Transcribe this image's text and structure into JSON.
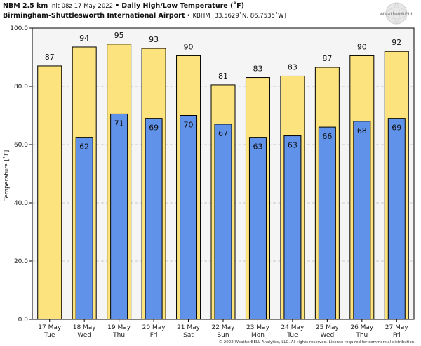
{
  "header": {
    "model": "NBM 2.5 km",
    "init": "Init 08z 17 May 2022",
    "bullet": "•",
    "title": "Daily High/Low Temperature (˚F)",
    "station": "Birmingham-Shuttlesworth International Airport",
    "station_code": "KBHM [33.5629˚N, 86.7535˚W]"
  },
  "logo": {
    "text": "WeatherBELL"
  },
  "copyright": "© 2022 WeatherBELL Analytics, LLC. All rights reserved. License required for commercial distribution.",
  "colors": {
    "high": "#fde37d",
    "low": "#6092e9",
    "outline": "#000000",
    "plot_bg": "#f5f5f5",
    "grid": "#cccccc"
  },
  "chart_data": {
    "type": "bar",
    "ylabel": "Temperature [˚F]",
    "ylim": [
      0,
      100
    ],
    "yticks": [
      "0.0",
      "20.0",
      "40.0",
      "60.0",
      "80.0",
      "100.0"
    ],
    "grid": true,
    "categories": [
      [
        "17 May",
        "Tue"
      ],
      [
        "18 May",
        "Wed"
      ],
      [
        "19 May",
        "Thu"
      ],
      [
        "20 May",
        "Fri"
      ],
      [
        "21 May",
        "Sat"
      ],
      [
        "22 May",
        "Sun"
      ],
      [
        "23 May",
        "Mon"
      ],
      [
        "24 May",
        "Tue"
      ],
      [
        "25 May",
        "Wed"
      ],
      [
        "26 May",
        "Thu"
      ],
      [
        "27 May",
        "Fri"
      ]
    ],
    "series": [
      {
        "values": [
          87,
          93.5,
          94.5,
          93,
          90.5,
          80.5,
          83,
          83.5,
          86.5,
          90.5,
          92
        ]
      },
      {
        "values": [
          null,
          62.5,
          70.5,
          69,
          70,
          67,
          62.5,
          63,
          66,
          68,
          69
        ]
      }
    ],
    "high_labels": [
      "87",
      "94",
      "95",
      "93",
      "90",
      "81",
      "83",
      "83",
      "87",
      "90",
      "92"
    ],
    "low_labels": [
      "",
      "62",
      "71",
      "69",
      "70",
      "67",
      "63",
      "63",
      "66",
      "68",
      "69"
    ]
  }
}
